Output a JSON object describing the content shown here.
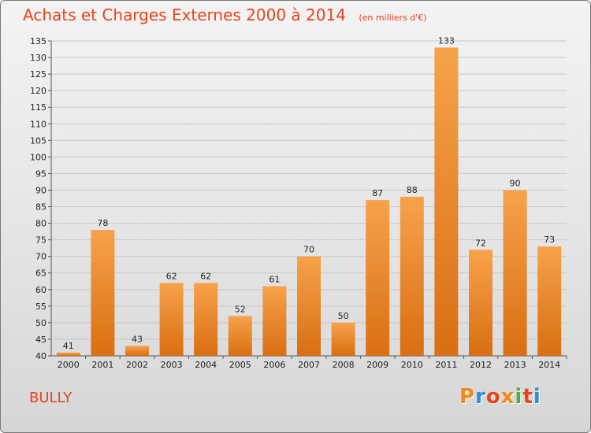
{
  "chart_data": {
    "type": "bar",
    "title": "Achats et Charges Externes 2000 à 2014",
    "subtitle": "(en milliers d'€)",
    "categories": [
      "2000",
      "2001",
      "2002",
      "2003",
      "2004",
      "2005",
      "2006",
      "2007",
      "2008",
      "2009",
      "2010",
      "2011",
      "2012",
      "2013",
      "2014"
    ],
    "values": [
      41,
      78,
      43,
      62,
      62,
      52,
      61,
      70,
      50,
      87,
      88,
      133,
      72,
      90,
      73
    ],
    "ylim": [
      40,
      135
    ],
    "ytick_step": 5,
    "grid": true,
    "bar_color": "#f0922e",
    "title_color": "#e8431a"
  },
  "footer": {
    "commune": "BULLY",
    "logo_letters": [
      "P",
      "r",
      "o",
      "x",
      "i",
      "t",
      "i"
    ],
    "logo_colors": [
      "#f08a1c",
      "#2a8fd8",
      "#e8431a",
      "#f08a1c",
      "#4cae3c",
      "#e8431a",
      "#2a8fd8"
    ]
  }
}
